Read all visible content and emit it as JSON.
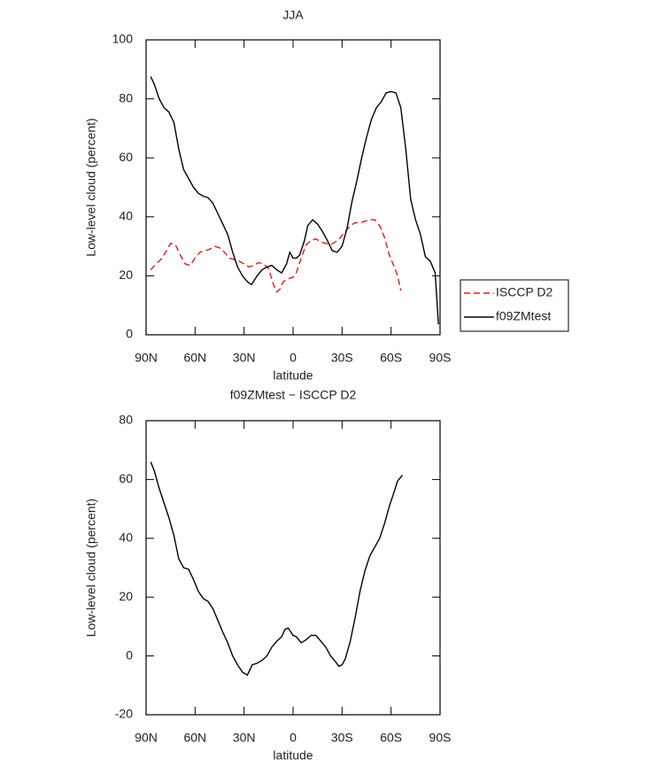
{
  "chart_data": [
    {
      "type": "line",
      "title": "JJA",
      "xlabel": "latitude",
      "ylabel": "Low-level cloud (percent)",
      "xlim": [
        90,
        -90
      ],
      "xticks": [
        {
          "value": 90,
          "label": "90N"
        },
        {
          "value": 60,
          "label": "60N"
        },
        {
          "value": 30,
          "label": "30N"
        },
        0,
        {
          "value": -30,
          "label": "30S"
        },
        {
          "value": -60,
          "label": "60S"
        },
        {
          "value": -90,
          "label": "90S"
        }
      ],
      "ylim": [
        0,
        100
      ],
      "yticks": [
        0,
        20,
        40,
        60,
        80,
        100
      ],
      "legend": "right",
      "series": [
        {
          "name": "ISCCP D2",
          "color": "#e41a1c",
          "linestyle": "dashed",
          "x": [
            87.2,
            84,
            81,
            78,
            75,
            72,
            69,
            66,
            63,
            60,
            57,
            54,
            51,
            48,
            45,
            42,
            39,
            36,
            33,
            30,
            27,
            24,
            21,
            18,
            15,
            12,
            10,
            8,
            6,
            3,
            0,
            -2,
            -5,
            -8,
            -11,
            -14,
            -17,
            -20,
            -23,
            -26,
            -29,
            -32,
            -35,
            -38,
            -41,
            -44,
            -47,
            -50,
            -53,
            -56,
            -59,
            -62,
            -64,
            -66
          ],
          "values": [
            22,
            24,
            25.5,
            28,
            31,
            30.5,
            27,
            24,
            23.5,
            26,
            28,
            28.5,
            29,
            30,
            29.5,
            28,
            26,
            25.5,
            25,
            24,
            23,
            23.5,
            24.5,
            24,
            22.5,
            17,
            14.5,
            15.5,
            18,
            19,
            19.5,
            21,
            26,
            30.5,
            32,
            32.5,
            31.5,
            31,
            30.5,
            31.5,
            33,
            35,
            37,
            38,
            38,
            38.5,
            39,
            39,
            37,
            33,
            27,
            23,
            20,
            15
          ]
        },
        {
          "name": "f09ZMtest",
          "color": "#000000",
          "linestyle": "solid",
          "x": [
            87.2,
            85,
            82,
            79,
            76,
            73,
            70,
            67,
            64,
            61,
            58,
            55,
            52,
            49,
            46,
            43,
            40,
            37,
            34,
            31,
            28,
            25.5,
            22,
            19,
            16,
            13,
            10,
            7,
            4,
            2,
            0,
            -2,
            -4,
            -7,
            -9,
            -12,
            -15,
            -18,
            -21,
            -24,
            -27,
            -30,
            -33,
            -36,
            -39,
            -42,
            -45,
            -48,
            -51,
            -54,
            -57,
            -60,
            -63,
            -66,
            -69,
            -72,
            -75,
            -78,
            -81,
            -84,
            -87,
            -89
          ],
          "values": [
            87.5,
            85,
            80,
            77,
            75.5,
            72,
            63,
            56,
            53,
            50,
            48,
            47,
            46.5,
            44.5,
            41,
            37.5,
            34,
            28,
            23,
            20,
            18,
            17,
            20,
            22,
            23,
            23.5,
            22,
            21,
            24,
            28,
            26,
            26,
            27,
            32,
            37,
            39,
            37.5,
            35,
            32,
            28.5,
            28,
            30,
            36,
            45,
            52,
            60,
            67,
            73,
            77,
            79,
            82,
            82.5,
            82,
            77,
            63,
            46,
            39,
            34,
            26.5,
            25,
            21,
            3.5
          ]
        }
      ]
    },
    {
      "type": "line",
      "title": "f09ZMtest − ISCCP D2",
      "xlabel": "latitude",
      "ylabel": "Low-level cloud (percent)",
      "xlim": [
        90,
        -90
      ],
      "xticks": [
        {
          "value": 90,
          "label": "90N"
        },
        {
          "value": 60,
          "label": "60N"
        },
        {
          "value": 30,
          "label": "30N"
        },
        0,
        {
          "value": -30,
          "label": "30S"
        },
        {
          "value": -60,
          "label": "60S"
        },
        {
          "value": -90,
          "label": "90S"
        }
      ],
      "ylim": [
        -20,
        80
      ],
      "yticks": [
        -20,
        0,
        20,
        40,
        60,
        80
      ],
      "series": [
        {
          "color": "#000000",
          "linestyle": "solid",
          "x": [
            87.2,
            85,
            82,
            79,
            76,
            73,
            70,
            67,
            64,
            61,
            58,
            55,
            52,
            49,
            46,
            43,
            40,
            37,
            34,
            31,
            28,
            25,
            22,
            19,
            16,
            13,
            10,
            7,
            5,
            3,
            0,
            -2,
            -5,
            -8,
            -11,
            -14,
            -17,
            -20,
            -23,
            -26,
            -28,
            -30,
            -32,
            -35,
            -38,
            -41,
            -44,
            -47,
            -50,
            -53,
            -56,
            -59,
            -62,
            -64,
            -67
          ],
          "values": [
            66,
            63,
            57,
            52,
            47,
            41,
            33,
            30,
            29.5,
            26,
            22,
            19.5,
            18.5,
            16,
            12,
            8,
            4.5,
            0,
            -3,
            -5.5,
            -6.5,
            -3,
            -2.5,
            -1.5,
            0,
            3,
            5,
            6.5,
            9,
            9.5,
            7,
            6.5,
            4.5,
            5.5,
            7,
            7,
            5,
            3,
            0,
            -2,
            -3.5,
            -3,
            -1,
            5,
            13,
            22,
            29,
            34,
            37,
            40,
            45,
            51,
            56,
            59.5,
            61.5
          ]
        }
      ]
    }
  ]
}
